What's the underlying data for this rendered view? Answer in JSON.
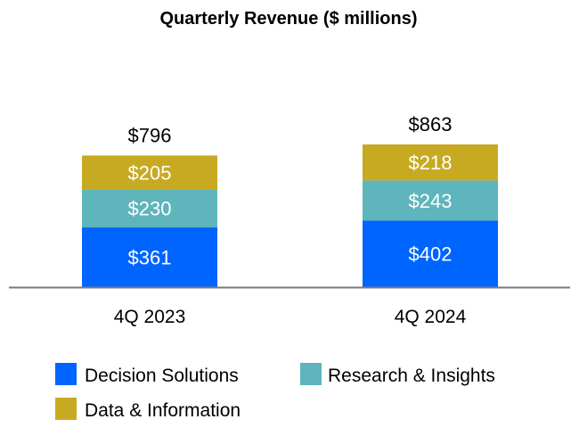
{
  "chart_data": {
    "type": "bar",
    "stacked": true,
    "title": "Quarterly Revenue ($ millions)",
    "categories": [
      "4Q 2023",
      "4Q 2024"
    ],
    "series": [
      {
        "name": "Decision Solutions",
        "values": [
          361,
          402
        ],
        "labels": [
          "$361",
          "$402"
        ],
        "color": "#0064FF"
      },
      {
        "name": "Research & Insights",
        "values": [
          230,
          243
        ],
        "labels": [
          "$230",
          "$243"
        ],
        "color": "#5EB5BB"
      },
      {
        "name": "Data & Information",
        "values": [
          205,
          218
        ],
        "labels": [
          "$205",
          "$218"
        ],
        "color": "#C8AA22"
      }
    ],
    "totals": [
      796,
      863
    ],
    "total_labels": [
      "$796",
      "$863"
    ],
    "ylim": [
      0,
      863
    ],
    "grid": false,
    "legend_position": "bottom"
  }
}
